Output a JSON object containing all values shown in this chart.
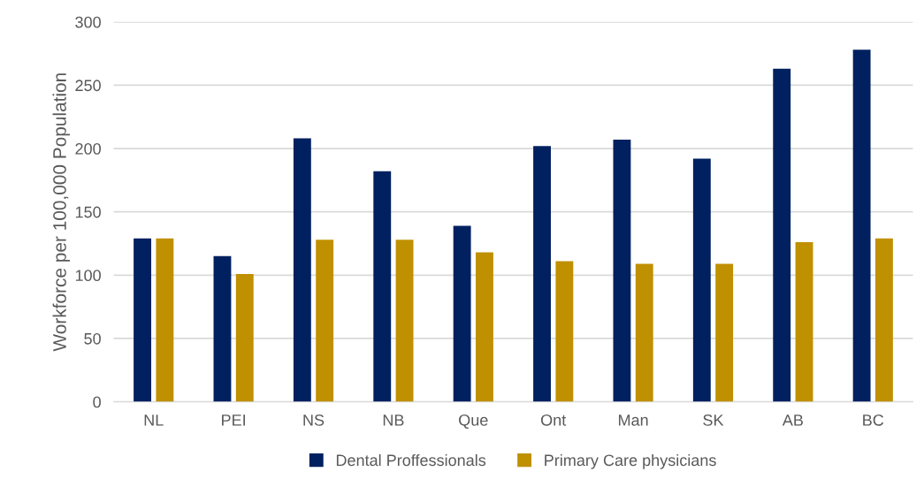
{
  "chart_data": {
    "type": "bar",
    "ylabel": "Workforce per 100,000 Population",
    "categories": [
      "NL",
      "PEI",
      "NS",
      "NB",
      "Que",
      "Ont",
      "Man",
      "SK",
      "AB",
      "BC"
    ],
    "series": [
      {
        "name": "Dental Proffessionals",
        "color": "#002060",
        "values": [
          129,
          115,
          208,
          182,
          139,
          202,
          207,
          192,
          263,
          278
        ]
      },
      {
        "name": "Primary Care physicians",
        "color": "#bf9000",
        "values": [
          129,
          101,
          128,
          128,
          118,
          111,
          109,
          109,
          126,
          129
        ]
      }
    ],
    "ylim": [
      0,
      300
    ],
    "yticks": [
      0,
      50,
      100,
      150,
      200,
      250,
      300
    ],
    "grid": "y",
    "legend": "bottom"
  }
}
